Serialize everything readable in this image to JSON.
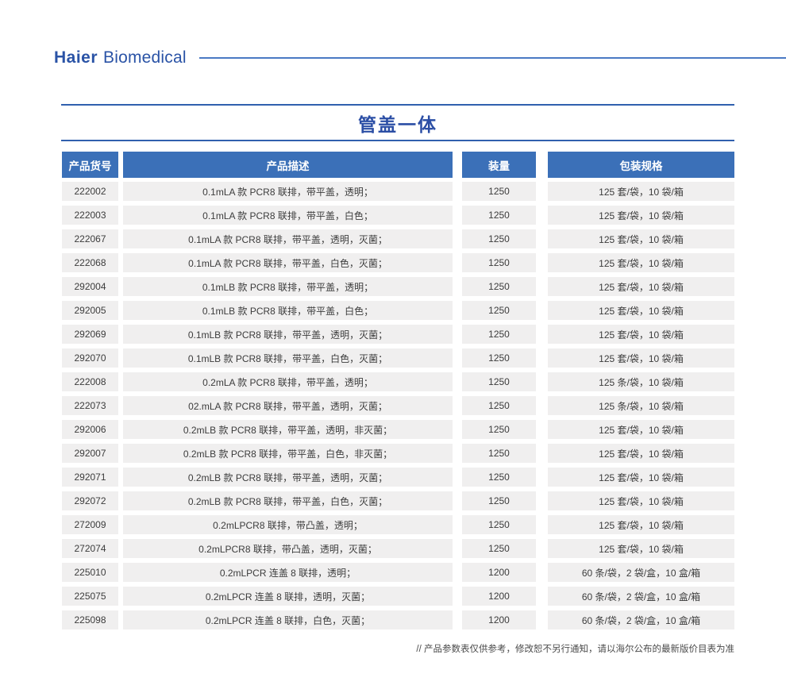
{
  "brand": {
    "haier": "Haier",
    "biomedical": "Biomedical"
  },
  "page": {
    "title": "管盖一体",
    "footnote": "// 产品参数表仅供参考，修改恕不另行通知，请以海尔公布的最新版价目表为准"
  },
  "table": {
    "headers": [
      "产品货号",
      "产品描述",
      "装量",
      "包装规格"
    ],
    "rows": [
      [
        "222002",
        "0.1mLA 款 PCR8 联排，带平盖，透明；",
        "1250",
        "125 套/袋，10 袋/箱"
      ],
      [
        "222003",
        "0.1mLA 款 PCR8 联排，带平盖，白色；",
        "1250",
        "125 套/袋，10 袋/箱"
      ],
      [
        "222067",
        "0.1mLA 款 PCR8 联排，带平盖，透明，灭菌；",
        "1250",
        "125 套/袋，10 袋/箱"
      ],
      [
        "222068",
        "0.1mLA 款 PCR8 联排，带平盖，白色，灭菌；",
        "1250",
        "125 套/袋，10 袋/箱"
      ],
      [
        "292004",
        "0.1mLB 款 PCR8 联排，带平盖，透明；",
        "1250",
        "125 套/袋，10 袋/箱"
      ],
      [
        "292005",
        "0.1mLB 款 PCR8 联排，带平盖，白色；",
        "1250",
        "125 套/袋，10 袋/箱"
      ],
      [
        "292069",
        "0.1mLB 款 PCR8 联排，带平盖，透明，灭菌；",
        "1250",
        "125 套/袋，10 袋/箱"
      ],
      [
        "292070",
        "0.1mLB 款 PCR8 联排，带平盖，白色，灭菌；",
        "1250",
        "125 套/袋，10 袋/箱"
      ],
      [
        "222008",
        "0.2mLA 款 PCR8 联排，带平盖，透明；",
        "1250",
        "125 条/袋，10 袋/箱"
      ],
      [
        "222073",
        "02.mLA 款 PCR8 联排，带平盖，透明，灭菌；",
        "1250",
        "125 条/袋，10 袋/箱"
      ],
      [
        "292006",
        "0.2mLB 款 PCR8 联排，带平盖，透明，非灭菌；",
        "1250",
        "125 套/袋，10 袋/箱"
      ],
      [
        "292007",
        "0.2mLB 款 PCR8 联排，带平盖，白色，非灭菌；",
        "1250",
        "125 套/袋，10 袋/箱"
      ],
      [
        "292071",
        "0.2mLB 款 PCR8 联排，带平盖，透明，灭菌；",
        "1250",
        "125 套/袋，10 袋/箱"
      ],
      [
        "292072",
        "0.2mLB 款 PCR8 联排，带平盖，白色，灭菌；",
        "1250",
        "125 套/袋，10 袋/箱"
      ],
      [
        "272009",
        "0.2mLPCR8 联排，带凸盖，透明；",
        "1250",
        "125 套/袋，10 袋/箱"
      ],
      [
        "272074",
        "0.2mLPCR8 联排，带凸盖，透明，灭菌；",
        "1250",
        "125 套/袋，10 袋/箱"
      ],
      [
        "225010",
        "0.2mLPCR 连盖 8 联排，透明；",
        "1200",
        "60 条/袋，2 袋/盒，10 盒/箱"
      ],
      [
        "225075",
        "0.2mLPCR 连盖 8 联排，透明，灭菌；",
        "1200",
        "60 条/袋，2 袋/盒，10 盒/箱"
      ],
      [
        "225098",
        "0.2mLPCR 连盖 8 联排，白色，灭菌；",
        "1200",
        "60 条/袋，2 袋/盒，10 盒/箱"
      ]
    ]
  },
  "colors": {
    "logo_blue": "#2A53A6",
    "line_blue": "#4A79C4",
    "rule_blue": "#3060AE",
    "title_blue": "#2B4EA5",
    "header_bg": "#3B70B8",
    "row_bg": "#F0EFEF",
    "text_dark": "#3C3C3C",
    "footnote_color": "#4A4A4A"
  }
}
